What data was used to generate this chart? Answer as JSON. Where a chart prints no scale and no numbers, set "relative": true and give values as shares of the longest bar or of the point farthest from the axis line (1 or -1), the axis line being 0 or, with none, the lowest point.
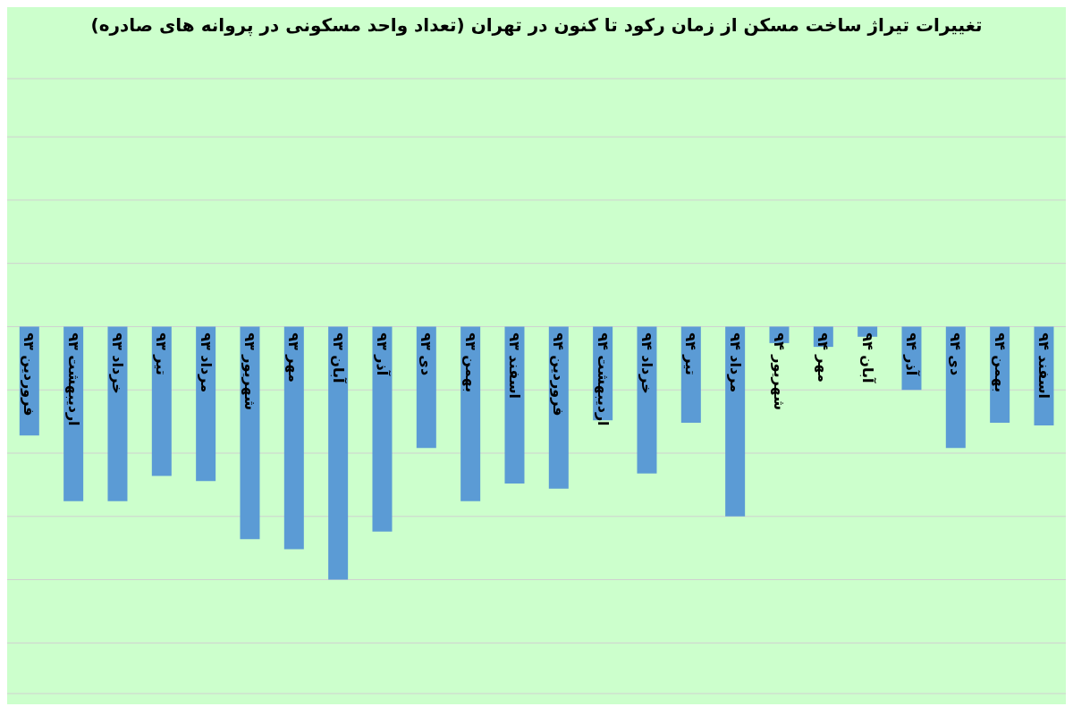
{
  "chart_data": {
    "type": "bar",
    "title": "تغییرات تیراژ ساخت مسکن از زمان رکود تا کنون در تهران (تعداد واحد مسکونی در پروانه های صادره)",
    "categories": [
      "فروردین ۹۳",
      "اردیبهشت ۹۳",
      "خرداد ۹۳",
      "تیر ۹۳",
      "مرداد ۹۳",
      "شهریور ۹۳",
      "مهر ۹۳",
      "آبان ۹۳",
      "آذر ۹۳",
      "دی ۹۳",
      "بهمن ۹۳",
      "اسفند ۹۳",
      "فروردین ۹۴",
      "اردیبهشت ۹۴",
      "خرداد ۹۴",
      "تیر ۹۴",
      "مرداد ۹۴",
      "شهریور ۹۴",
      "مهر ۹۴",
      "آبان ۹۴",
      "آذر ۹۴",
      "دی ۹۴",
      "بهمن ۹۴",
      "اسفند ۹۴"
    ],
    "values": [
      -0.43,
      -0.69,
      -0.69,
      -0.59,
      -0.61,
      -0.84,
      -0.88,
      -1,
      -0.81,
      -0.48,
      -0.69,
      -0.62,
      -0.64,
      -0.37,
      -0.58,
      -0.38,
      -0.75,
      -0.065,
      -0.08,
      -0.04,
      -0.25,
      -0.48,
      -0.38,
      -0.39
    ],
    "color": "#5b9bd5",
    "relative": true,
    "grid": "y"
  }
}
